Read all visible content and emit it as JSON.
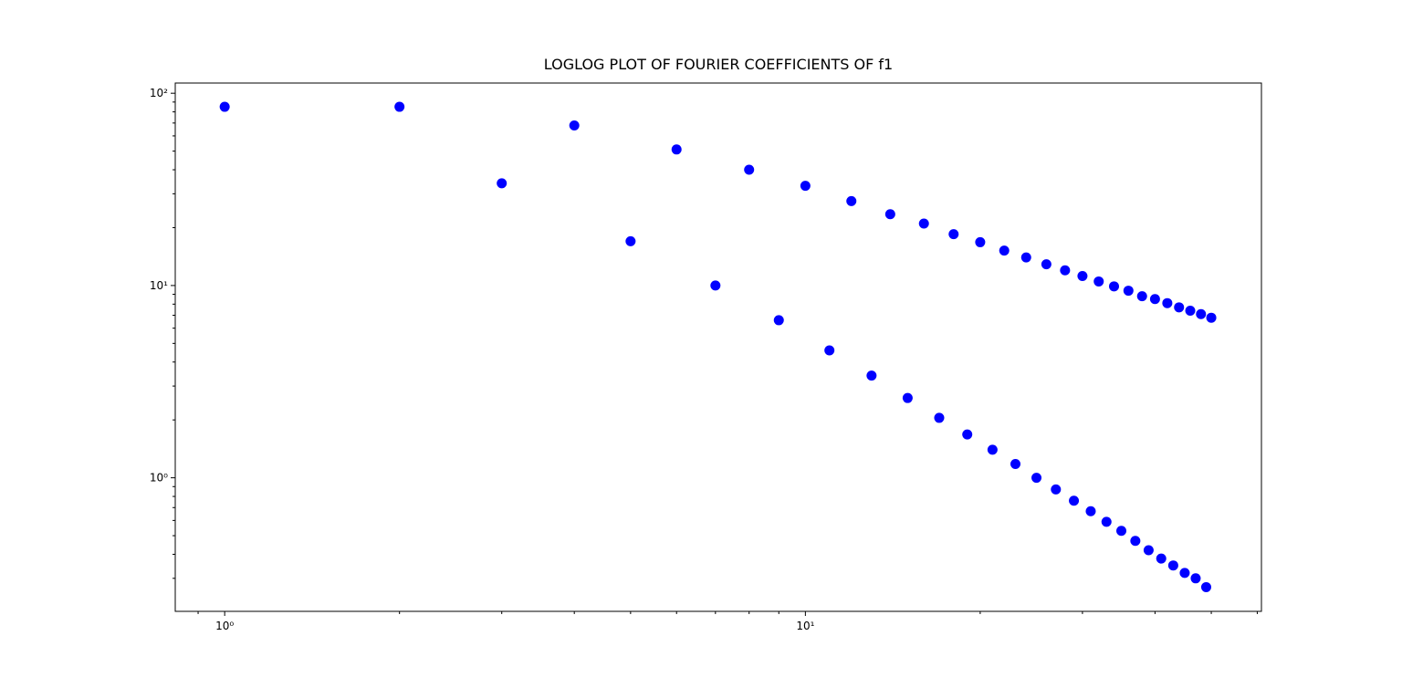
{
  "chart_data": {
    "type": "scatter",
    "title": "LOGLOG PLOT OF FOURIER COEFFICIENTS OF f1",
    "xscale": "log",
    "yscale": "log",
    "x": [
      1,
      2,
      3,
      4,
      5,
      6,
      7,
      8,
      9,
      10,
      11,
      12,
      13,
      14,
      15,
      16,
      17,
      18,
      19,
      20,
      21,
      22,
      23,
      24,
      25,
      26,
      27,
      28,
      29,
      30,
      31,
      32,
      33,
      34,
      35,
      36,
      37,
      38,
      39,
      40,
      41,
      42,
      43,
      44,
      45,
      46,
      47,
      48,
      49,
      50
    ],
    "series": [
      {
        "color": "#0000ff",
        "values": [
          85,
          85,
          34,
          68,
          17,
          51,
          10,
          40,
          6.6,
          33,
          4.6,
          27.5,
          3.4,
          23.5,
          2.6,
          21,
          2.05,
          18.5,
          1.68,
          16.8,
          1.4,
          15.2,
          1.18,
          14,
          1.0,
          12.9,
          0.87,
          12,
          0.76,
          11.2,
          0.67,
          10.5,
          0.59,
          9.9,
          0.53,
          9.4,
          0.47,
          8.8,
          0.42,
          8.5,
          0.38,
          8.1,
          0.35,
          7.7,
          0.32,
          7.4,
          0.3,
          7.1,
          0.27,
          6.8
        ]
      }
    ],
    "xlim": [
      0.822,
      61.0
    ],
    "ylim": [
      0.202,
      113
    ],
    "xticks": [
      {
        "value": 1,
        "label": "10⁰"
      },
      {
        "value": 10,
        "label": "10¹"
      }
    ],
    "yticks": [
      {
        "value": 1,
        "label": "10⁰"
      },
      {
        "value": 10,
        "label": "10¹"
      },
      {
        "value": 100,
        "label": "10²"
      }
    ],
    "xminorticks": [
      0.9,
      2,
      3,
      4,
      5,
      6,
      7,
      8,
      9,
      20,
      30,
      40,
      50,
      60
    ],
    "yminorticks": [
      0.3,
      0.4,
      0.5,
      0.6,
      0.7,
      0.8,
      0.9,
      2,
      3,
      4,
      5,
      6,
      7,
      8,
      9,
      20,
      30,
      40,
      50,
      60,
      70,
      80,
      90
    ]
  }
}
